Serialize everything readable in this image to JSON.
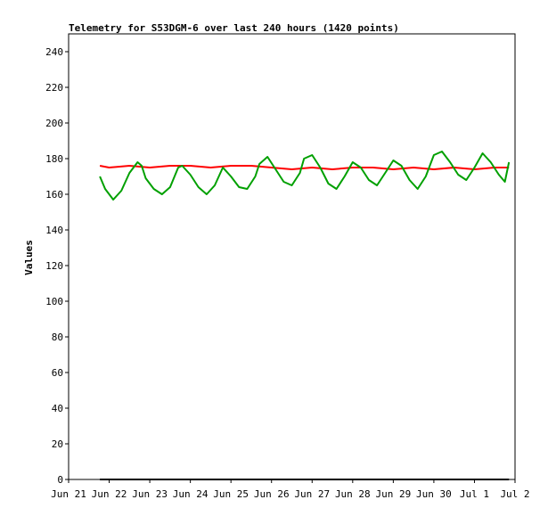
{
  "chart_data": {
    "type": "line",
    "title": "Telemetry for S53DGM-6 over last 240 hours (1420 points)",
    "xlabel": "",
    "ylabel": "Values",
    "ylim": [
      0,
      250
    ],
    "yticks": [
      0,
      20,
      40,
      60,
      80,
      100,
      120,
      140,
      160,
      180,
      200,
      220,
      240
    ],
    "xlim": [
      "Jun 21",
      "Jul 2"
    ],
    "xticks": [
      "Jun 21",
      "Jun 22",
      "Jun 23",
      "Jun 24",
      "Jun 25",
      "Jun 26",
      "Jun 27",
      "Jun 28",
      "Jun 29",
      "Jun 30",
      "Jul 1",
      "Jul 2"
    ],
    "grid": false,
    "legend": "none",
    "series": [
      {
        "color": "#ff0000",
        "x": [
          0.77,
          1.0,
          1.5,
          2.0,
          2.5,
          3.0,
          3.5,
          4.0,
          4.5,
          5.0,
          5.5,
          6.0,
          6.5,
          7.0,
          7.5,
          8.0,
          8.5,
          9.0,
          9.5,
          10.0,
          10.5,
          10.85
        ],
        "values": [
          176,
          175,
          176,
          175,
          176,
          176,
          175,
          176,
          176,
          175,
          174,
          175,
          174,
          175,
          175,
          174,
          175,
          174,
          175,
          174,
          175,
          175
        ]
      },
      {
        "color": "#00a000",
        "x": [
          0.77,
          0.9,
          1.1,
          1.3,
          1.5,
          1.7,
          1.8,
          1.9,
          2.1,
          2.3,
          2.5,
          2.7,
          2.8,
          3.0,
          3.2,
          3.4,
          3.6,
          3.8,
          4.0,
          4.2,
          4.4,
          4.6,
          4.7,
          4.9,
          5.1,
          5.3,
          5.5,
          5.7,
          5.8,
          6.0,
          6.2,
          6.4,
          6.6,
          6.8,
          7.0,
          7.2,
          7.4,
          7.6,
          7.8,
          8.0,
          8.2,
          8.4,
          8.6,
          8.8,
          9.0,
          9.2,
          9.4,
          9.6,
          9.8,
          10.0,
          10.2,
          10.4,
          10.6,
          10.75,
          10.85
        ],
        "values": [
          170,
          163,
          157,
          162,
          172,
          178,
          176,
          169,
          163,
          160,
          164,
          175,
          176,
          171,
          164,
          160,
          165,
          175,
          170,
          164,
          163,
          170,
          177,
          181,
          174,
          167,
          165,
          172,
          180,
          182,
          175,
          166,
          163,
          170,
          178,
          175,
          168,
          165,
          172,
          179,
          176,
          168,
          163,
          170,
          182,
          184,
          178,
          171,
          168,
          175,
          183,
          178,
          171,
          167,
          178
        ]
      },
      {
        "color": "#000000",
        "x": [
          0.77,
          10.85
        ],
        "values": [
          0,
          0
        ]
      }
    ]
  }
}
